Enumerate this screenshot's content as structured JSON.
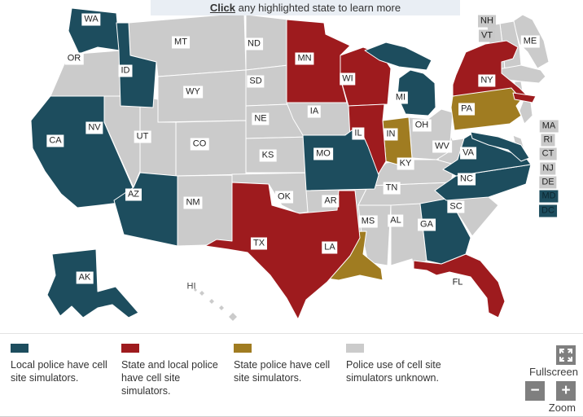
{
  "header": {
    "click_word": "Click",
    "instruction": " any highlighted state to learn more"
  },
  "colors": {
    "local": "#1d4d5e",
    "state_local": "#9e1b1e",
    "state": "#a07c21",
    "unknown": "#cbcbcb"
  },
  "map": {
    "states": [
      {
        "code": "OR",
        "category": "unknown"
      },
      {
        "code": "NV",
        "category": "unknown"
      },
      {
        "code": "UT",
        "category": "unknown"
      },
      {
        "code": "MT",
        "category": "unknown"
      },
      {
        "code": "WY",
        "category": "unknown"
      },
      {
        "code": "CO",
        "category": "unknown"
      },
      {
        "code": "NM",
        "category": "unknown"
      },
      {
        "code": "ND",
        "category": "unknown"
      },
      {
        "code": "SD",
        "category": "unknown"
      },
      {
        "code": "NE",
        "category": "unknown"
      },
      {
        "code": "KS",
        "category": "unknown"
      },
      {
        "code": "OK",
        "category": "unknown"
      },
      {
        "code": "IA",
        "category": "unknown"
      },
      {
        "code": "AR",
        "category": "unknown"
      },
      {
        "code": "TN",
        "category": "unknown"
      },
      {
        "code": "MS",
        "category": "unknown"
      },
      {
        "code": "AL",
        "category": "unknown"
      },
      {
        "code": "SC",
        "category": "unknown"
      },
      {
        "code": "WV",
        "category": "unknown"
      },
      {
        "code": "KY",
        "category": "unknown"
      },
      {
        "code": "OH",
        "category": "unknown"
      },
      {
        "code": "ME",
        "category": "unknown"
      },
      {
        "code": "NH",
        "category": "unknown"
      },
      {
        "code": "VT",
        "category": "unknown"
      },
      {
        "code": "MA",
        "category": "unknown"
      },
      {
        "code": "CT",
        "category": "unknown"
      },
      {
        "code": "RI",
        "category": "unknown"
      },
      {
        "code": "NJ",
        "category": "unknown"
      },
      {
        "code": "DE",
        "category": "unknown"
      },
      {
        "code": "HI",
        "category": "unknown"
      },
      {
        "code": "PA",
        "category": "state"
      },
      {
        "code": "IN",
        "category": "state"
      },
      {
        "code": "LA",
        "category": "state"
      },
      {
        "code": "MN",
        "category": "state_local"
      },
      {
        "code": "WI",
        "category": "state_local"
      },
      {
        "code": "IL",
        "category": "state_local"
      },
      {
        "code": "NY",
        "category": "state_local"
      },
      {
        "code": "TX",
        "category": "state_local"
      },
      {
        "code": "FL",
        "category": "state_local"
      },
      {
        "code": "WA",
        "category": "local"
      },
      {
        "code": "ID",
        "category": "local"
      },
      {
        "code": "CA",
        "category": "local"
      },
      {
        "code": "AZ",
        "category": "local"
      },
      {
        "code": "MO",
        "category": "local"
      },
      {
        "code": "MI",
        "category": "local"
      },
      {
        "code": "GA",
        "category": "local"
      },
      {
        "code": "NC",
        "category": "local"
      },
      {
        "code": "VA",
        "category": "local"
      },
      {
        "code": "MD",
        "category": "local"
      },
      {
        "code": "DC",
        "category": "local"
      },
      {
        "code": "AK",
        "category": "local"
      }
    ]
  },
  "legend": [
    {
      "category": "local",
      "label": "Local police have cell site simulators."
    },
    {
      "category": "state_local",
      "label": "State and local police have cell site simulators."
    },
    {
      "category": "state",
      "label": "State police have cell site simulators."
    },
    {
      "category": "unknown",
      "label": "Police use of cell site simulators unknown."
    }
  ],
  "controls": {
    "fullscreen_label": "Fullscreen",
    "zoom_label": "Zoom",
    "zoom_out_symbol": "−",
    "zoom_in_symbol": "+"
  }
}
